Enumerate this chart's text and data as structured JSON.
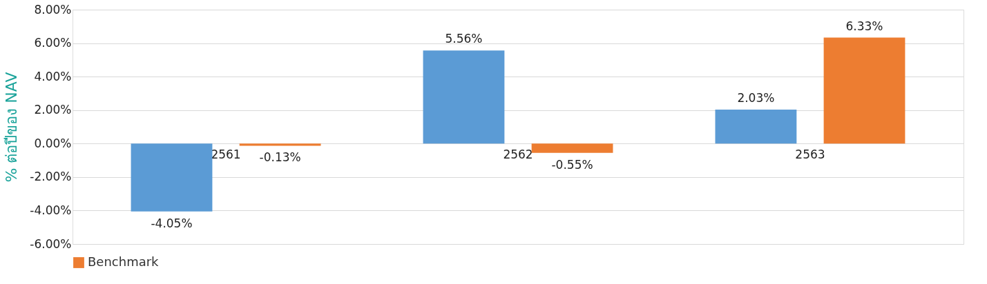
{
  "chart_data": {
    "type": "bar",
    "ylabel": "% ต่อปีของ NAV",
    "categories": [
      "2561",
      "2562",
      "2563"
    ],
    "series": [
      {
        "color": "#5b9bd5",
        "values": [
          -4.05,
          5.56,
          2.03
        ],
        "value_labels": [
          "-4.05%",
          "5.56%",
          "2.03%"
        ]
      },
      {
        "name": "Benchmark",
        "color": "#ed7d31",
        "values": [
          -0.13,
          -0.55,
          6.33
        ],
        "value_labels": [
          "-0.13%",
          "-0.55%",
          "6.33%"
        ]
      }
    ],
    "ylim": [
      -6,
      8
    ],
    "yticks": [
      {
        "value": -6,
        "label": "-6.00%"
      },
      {
        "value": -4,
        "label": "-4.00%"
      },
      {
        "value": -2,
        "label": "-2.00%"
      },
      {
        "value": 0,
        "label": "0.00%"
      },
      {
        "value": 2,
        "label": "2.00%"
      },
      {
        "value": 4,
        "label": "4.00%"
      },
      {
        "value": 6,
        "label": "6.00%"
      },
      {
        "value": 8,
        "label": "8.00%"
      }
    ],
    "grid": "y",
    "legend": "bottom"
  }
}
